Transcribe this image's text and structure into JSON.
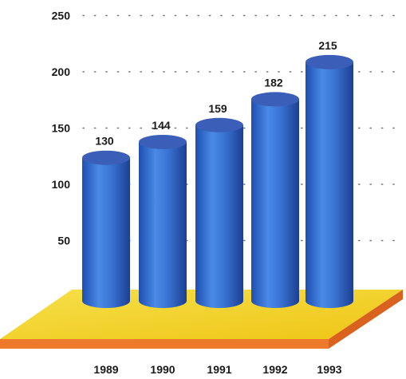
{
  "chart_data": {
    "type": "bar",
    "style": "3d-cylinder",
    "categories": [
      "1989",
      "1990",
      "1991",
      "1992",
      "1993"
    ],
    "values": [
      130,
      144,
      159,
      182,
      215
    ],
    "y_ticks": [
      "50",
      "100",
      "150",
      "200",
      "250"
    ],
    "ylim": [
      0,
      250
    ],
    "grid": "dotted",
    "colors": {
      "bar": "#3a74d4",
      "bar_top": "#3b5fb8",
      "floor_top": "#f2d21c",
      "floor_edge": "#ec7a2a"
    }
  }
}
